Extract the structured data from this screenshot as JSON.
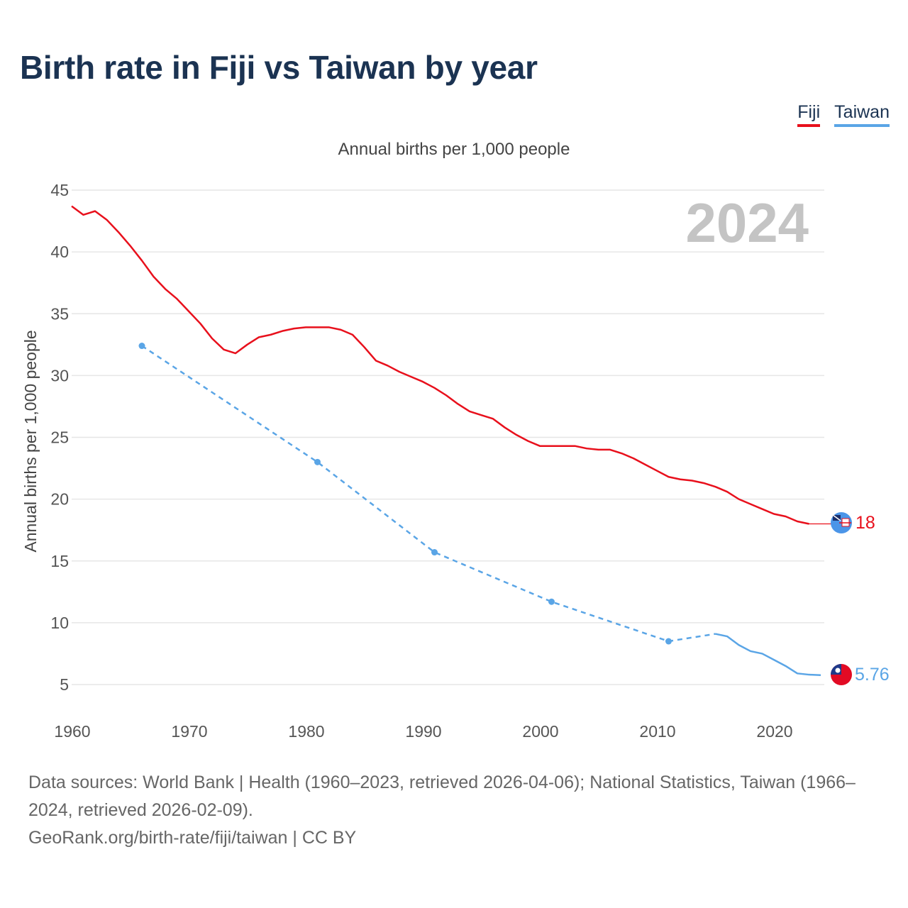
{
  "title": "Birth rate in Fiji vs Taiwan by year",
  "subtitle": "Annual births per 1,000 people",
  "legend": [
    {
      "label": "Fiji",
      "color": "#e8101c"
    },
    {
      "label": "Taiwan",
      "color": "#5aa5e6"
    }
  ],
  "year_watermark": "2024",
  "end_labels": {
    "fiji": "18",
    "taiwan": "5.76"
  },
  "footer": {
    "sources": "Data sources: World Bank | Health (1960–2023, retrieved 2026-04-06); National Statistics, Taiwan (1966–2024, retrieved 2026-02-09).",
    "credit": "GeoRank.org/birth-rate/fiji/taiwan | CC BY"
  },
  "chart_data": {
    "type": "line",
    "title": "Birth rate in Fiji vs Taiwan by year",
    "xlabel": "",
    "ylabel": "Annual births per 1,000 people",
    "xlim": [
      1960,
      2025
    ],
    "ylim": [
      5,
      45
    ],
    "xticks": [
      1960,
      1970,
      1980,
      1990,
      2000,
      2010,
      2020
    ],
    "yticks": [
      5,
      10,
      15,
      20,
      25,
      30,
      35,
      40,
      45
    ],
    "grid": true,
    "legend_position": "top-right",
    "series": [
      {
        "name": "Fiji",
        "color": "#e8101c",
        "x": [
          1960,
          1961,
          1962,
          1963,
          1964,
          1965,
          1966,
          1967,
          1968,
          1969,
          1970,
          1971,
          1972,
          1973,
          1974,
          1975,
          1976,
          1977,
          1978,
          1979,
          1980,
          1981,
          1982,
          1983,
          1984,
          1985,
          1986,
          1987,
          1988,
          1989,
          1990,
          1991,
          1992,
          1993,
          1994,
          1995,
          1996,
          1997,
          1998,
          1999,
          2000,
          2001,
          2002,
          2003,
          2004,
          2005,
          2006,
          2007,
          2008,
          2009,
          2010,
          2011,
          2012,
          2013,
          2014,
          2015,
          2016,
          2017,
          2018,
          2019,
          2020,
          2021,
          2022,
          2023
        ],
        "values": [
          43.7,
          43.0,
          43.3,
          42.6,
          41.6,
          40.5,
          39.3,
          38.0,
          37.0,
          36.2,
          35.2,
          34.2,
          33.0,
          32.1,
          31.8,
          32.5,
          33.1,
          33.3,
          33.6,
          33.8,
          33.9,
          33.9,
          33.9,
          33.7,
          33.3,
          32.3,
          31.2,
          30.8,
          30.3,
          29.9,
          29.5,
          29.0,
          28.4,
          27.7,
          27.1,
          26.8,
          26.5,
          25.8,
          25.2,
          24.7,
          24.3,
          24.3,
          24.3,
          24.3,
          24.1,
          24.0,
          24.0,
          23.7,
          23.3,
          22.8,
          22.3,
          21.8,
          21.6,
          21.5,
          21.3,
          21.0,
          20.6,
          20.0,
          19.6,
          19.2,
          18.8,
          18.6,
          18.2,
          18.0
        ]
      },
      {
        "name": "Taiwan",
        "color": "#5aa5e6",
        "x": [
          1966,
          1981,
          1991,
          2001,
          2011,
          2015,
          2016,
          2017,
          2018,
          2019,
          2020,
          2021,
          2022,
          2023,
          2024
        ],
        "values": [
          32.4,
          23.0,
          15.7,
          11.7,
          8.5,
          9.1,
          8.9,
          8.2,
          7.7,
          7.5,
          7.0,
          6.5,
          5.9,
          5.8,
          5.76
        ],
        "marked_points": [
          1966,
          1981,
          1991,
          2001,
          2011
        ],
        "dashed_until": 2015
      }
    ]
  }
}
